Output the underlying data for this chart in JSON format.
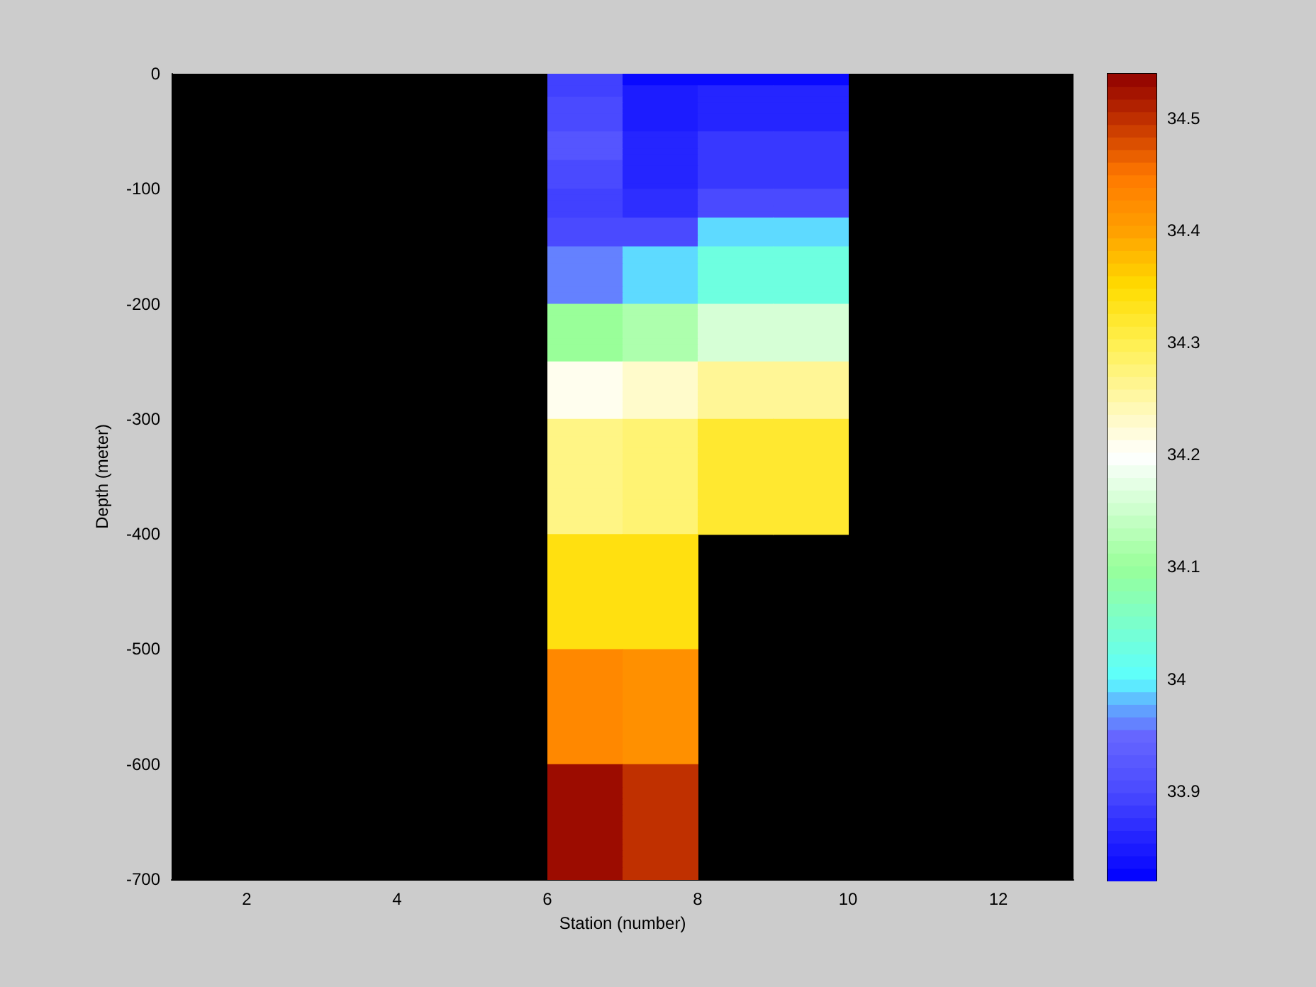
{
  "chart_data": {
    "type": "heatmap",
    "xlabel": "Station (number)",
    "ylabel": "Depth (meter)",
    "xlim": [
      1,
      13
    ],
    "xticks": [
      2,
      4,
      6,
      8,
      10,
      12
    ],
    "ylim": [
      -700,
      0
    ],
    "yticks": [
      0,
      -100,
      -200,
      -300,
      -400,
      -500,
      -600,
      -700
    ],
    "clim": [
      33.82,
      34.54
    ],
    "cticks": [
      33.9,
      34,
      34.1,
      34.2,
      34.3,
      34.4,
      34.5
    ],
    "cells": [
      [
        null,
        null,
        null,
        null,
        null,
        33.89,
        33.83,
        33.83,
        33.83,
        null,
        null,
        null
      ],
      [
        null,
        null,
        null,
        null,
        null,
        33.89,
        33.83,
        33.83,
        33.83,
        null,
        null,
        null
      ],
      [
        null,
        null,
        null,
        null,
        null,
        33.89,
        33.85,
        33.86,
        33.86,
        null,
        null,
        null
      ],
      [
        null,
        null,
        null,
        null,
        null,
        33.89,
        33.85,
        33.86,
        33.86,
        null,
        null,
        null
      ],
      [
        null,
        null,
        null,
        null,
        null,
        33.9,
        33.85,
        33.86,
        33.86,
        null,
        null,
        null
      ],
      [
        null,
        null,
        null,
        null,
        null,
        33.9,
        33.85,
        33.86,
        33.86,
        null,
        null,
        null
      ],
      [
        null,
        null,
        null,
        null,
        null,
        33.9,
        33.85,
        33.86,
        33.86,
        null,
        null,
        null
      ],
      [
        null,
        null,
        null,
        null,
        null,
        33.9,
        33.85,
        33.86,
        33.86,
        null,
        null,
        null
      ],
      [
        null,
        null,
        null,
        null,
        null,
        33.9,
        33.85,
        33.86,
        33.86,
        null,
        null,
        null
      ],
      [
        null,
        null,
        null,
        null,
        null,
        33.9,
        33.85,
        33.86,
        33.86,
        null,
        null,
        null
      ],
      [
        null,
        null,
        null,
        null,
        null,
        33.92,
        33.86,
        33.88,
        33.88,
        null,
        null,
        null
      ],
      [
        null,
        null,
        null,
        null,
        null,
        33.92,
        33.86,
        33.88,
        33.88,
        null,
        null,
        null
      ],
      [
        null,
        null,
        null,
        null,
        null,
        33.92,
        33.86,
        33.88,
        33.88,
        null,
        null,
        null
      ],
      [
        null,
        null,
        null,
        null,
        null,
        33.92,
        33.86,
        33.88,
        33.88,
        null,
        null,
        null
      ],
      [
        null,
        null,
        null,
        null,
        null,
        33.92,
        33.86,
        33.88,
        33.88,
        null,
        null,
        null
      ],
      [
        null,
        null,
        null,
        null,
        null,
        33.9,
        33.86,
        33.88,
        33.88,
        null,
        null,
        null
      ],
      [
        null,
        null,
        null,
        null,
        null,
        33.9,
        33.86,
        33.88,
        33.88,
        null,
        null,
        null
      ],
      [
        null,
        null,
        null,
        null,
        null,
        33.9,
        33.86,
        33.88,
        33.88,
        null,
        null,
        null
      ],
      [
        null,
        null,
        null,
        null,
        null,
        33.9,
        33.86,
        33.88,
        33.88,
        null,
        null,
        null
      ],
      [
        null,
        null,
        null,
        null,
        null,
        33.9,
        33.86,
        33.88,
        33.88,
        null,
        null,
        null
      ],
      [
        null,
        null,
        null,
        null,
        null,
        33.89,
        33.87,
        33.9,
        33.9,
        null,
        null,
        null
      ],
      [
        null,
        null,
        null,
        null,
        null,
        33.89,
        33.87,
        33.9,
        33.9,
        null,
        null,
        null
      ],
      [
        null,
        null,
        null,
        null,
        null,
        33.89,
        33.87,
        33.9,
        33.9,
        null,
        null,
        null
      ],
      [
        null,
        null,
        null,
        null,
        null,
        33.89,
        33.87,
        33.9,
        33.9,
        null,
        null,
        null
      ],
      [
        null,
        null,
        null,
        null,
        null,
        33.89,
        33.87,
        33.9,
        33.9,
        null,
        null,
        null
      ],
      [
        null,
        null,
        null,
        null,
        null,
        33.9,
        33.9,
        33.99,
        33.99,
        null,
        null,
        null
      ],
      [
        null,
        null,
        null,
        null,
        null,
        33.9,
        33.9,
        33.99,
        33.99,
        null,
        null,
        null
      ],
      [
        null,
        null,
        null,
        null,
        null,
        33.9,
        33.9,
        33.99,
        33.99,
        null,
        null,
        null
      ],
      [
        null,
        null,
        null,
        null,
        null,
        33.9,
        33.9,
        33.99,
        33.99,
        null,
        null,
        null
      ],
      [
        null,
        null,
        null,
        null,
        null,
        33.9,
        33.9,
        33.99,
        33.99,
        null,
        null,
        null
      ],
      [
        null,
        null,
        null,
        null,
        null,
        33.96,
        33.99,
        34.03,
        34.03,
        null,
        null,
        null
      ],
      [
        null,
        null,
        null,
        null,
        null,
        33.96,
        33.99,
        34.03,
        34.03,
        null,
        null,
        null
      ],
      [
        null,
        null,
        null,
        null,
        null,
        33.96,
        33.99,
        34.03,
        34.03,
        null,
        null,
        null
      ],
      [
        null,
        null,
        null,
        null,
        null,
        33.96,
        33.99,
        34.03,
        34.03,
        null,
        null,
        null
      ],
      [
        null,
        null,
        null,
        null,
        null,
        33.96,
        33.99,
        34.03,
        34.03,
        null,
        null,
        null
      ],
      [
        null,
        null,
        null,
        null,
        null,
        33.96,
        33.99,
        34.03,
        34.03,
        null,
        null,
        null
      ],
      [
        null,
        null,
        null,
        null,
        null,
        33.96,
        33.99,
        34.03,
        34.03,
        null,
        null,
        null
      ],
      [
        null,
        null,
        null,
        null,
        null,
        33.96,
        33.99,
        34.03,
        34.03,
        null,
        null,
        null
      ],
      [
        null,
        null,
        null,
        null,
        null,
        33.96,
        33.99,
        34.03,
        34.03,
        null,
        null,
        null
      ],
      [
        null,
        null,
        null,
        null,
        null,
        33.96,
        33.99,
        34.03,
        34.03,
        null,
        null,
        null
      ],
      [
        null,
        null,
        null,
        null,
        null,
        34.1,
        34.12,
        34.16,
        34.16,
        null,
        null,
        null
      ],
      [
        null,
        null,
        null,
        null,
        null,
        34.1,
        34.12,
        34.16,
        34.16,
        null,
        null,
        null
      ],
      [
        null,
        null,
        null,
        null,
        null,
        34.1,
        34.12,
        34.16,
        34.16,
        null,
        null,
        null
      ],
      [
        null,
        null,
        null,
        null,
        null,
        34.1,
        34.12,
        34.16,
        34.16,
        null,
        null,
        null
      ],
      [
        null,
        null,
        null,
        null,
        null,
        34.1,
        34.12,
        34.16,
        34.16,
        null,
        null,
        null
      ],
      [
        null,
        null,
        null,
        null,
        null,
        34.1,
        34.12,
        34.16,
        34.16,
        null,
        null,
        null
      ],
      [
        null,
        null,
        null,
        null,
        null,
        34.1,
        34.12,
        34.16,
        34.16,
        null,
        null,
        null
      ],
      [
        null,
        null,
        null,
        null,
        null,
        34.1,
        34.12,
        34.16,
        34.16,
        null,
        null,
        null
      ],
      [
        null,
        null,
        null,
        null,
        null,
        34.1,
        34.12,
        34.16,
        34.16,
        null,
        null,
        null
      ],
      [
        null,
        null,
        null,
        null,
        null,
        34.1,
        34.12,
        34.16,
        34.16,
        null,
        null,
        null
      ],
      [
        null,
        null,
        null,
        null,
        null,
        34.21,
        34.23,
        34.26,
        34.26,
        null,
        null,
        null
      ],
      [
        null,
        null,
        null,
        null,
        null,
        34.21,
        34.23,
        34.26,
        34.26,
        null,
        null,
        null
      ],
      [
        null,
        null,
        null,
        null,
        null,
        34.21,
        34.23,
        34.26,
        34.26,
        null,
        null,
        null
      ],
      [
        null,
        null,
        null,
        null,
        null,
        34.21,
        34.23,
        34.26,
        34.26,
        null,
        null,
        null
      ],
      [
        null,
        null,
        null,
        null,
        null,
        34.21,
        34.23,
        34.26,
        34.26,
        null,
        null,
        null
      ],
      [
        null,
        null,
        null,
        null,
        null,
        34.21,
        34.23,
        34.26,
        34.26,
        null,
        null,
        null
      ],
      [
        null,
        null,
        null,
        null,
        null,
        34.21,
        34.23,
        34.26,
        34.26,
        null,
        null,
        null
      ],
      [
        null,
        null,
        null,
        null,
        null,
        34.21,
        34.23,
        34.26,
        34.26,
        null,
        null,
        null
      ],
      [
        null,
        null,
        null,
        null,
        null,
        34.21,
        34.23,
        34.26,
        34.26,
        null,
        null,
        null
      ],
      [
        null,
        null,
        null,
        null,
        null,
        34.21,
        34.23,
        34.26,
        34.26,
        null,
        null,
        null
      ],
      [
        null,
        null,
        null,
        null,
        null,
        34.27,
        34.28,
        34.32,
        34.32,
        null,
        null,
        null
      ],
      [
        null,
        null,
        null,
        null,
        null,
        34.27,
        34.28,
        34.32,
        34.32,
        null,
        null,
        null
      ],
      [
        null,
        null,
        null,
        null,
        null,
        34.27,
        34.28,
        34.32,
        34.32,
        null,
        null,
        null
      ],
      [
        null,
        null,
        null,
        null,
        null,
        34.27,
        34.28,
        34.32,
        34.32,
        null,
        null,
        null
      ],
      [
        null,
        null,
        null,
        null,
        null,
        34.27,
        34.28,
        34.32,
        34.32,
        null,
        null,
        null
      ],
      [
        null,
        null,
        null,
        null,
        null,
        34.27,
        34.28,
        34.32,
        34.32,
        null,
        null,
        null
      ],
      [
        null,
        null,
        null,
        null,
        null,
        34.27,
        34.28,
        34.32,
        34.32,
        null,
        null,
        null
      ],
      [
        null,
        null,
        null,
        null,
        null,
        34.27,
        34.28,
        34.32,
        34.32,
        null,
        null,
        null
      ],
      [
        null,
        null,
        null,
        null,
        null,
        34.27,
        34.28,
        34.32,
        34.32,
        null,
        null,
        null
      ],
      [
        null,
        null,
        null,
        null,
        null,
        34.27,
        34.28,
        34.32,
        34.32,
        null,
        null,
        null
      ],
      [
        null,
        null,
        null,
        null,
        null,
        34.27,
        34.28,
        34.32,
        34.32,
        null,
        null,
        null
      ],
      [
        null,
        null,
        null,
        null,
        null,
        34.27,
        34.28,
        34.32,
        34.32,
        null,
        null,
        null
      ],
      [
        null,
        null,
        null,
        null,
        null,
        34.27,
        34.28,
        34.32,
        34.32,
        null,
        null,
        null
      ],
      [
        null,
        null,
        null,
        null,
        null,
        34.27,
        34.28,
        34.32,
        34.32,
        null,
        null,
        null
      ],
      [
        null,
        null,
        null,
        null,
        null,
        34.27,
        34.28,
        34.32,
        34.32,
        null,
        null,
        null
      ],
      [
        null,
        null,
        null,
        null,
        null,
        34.27,
        34.28,
        34.32,
        34.32,
        null,
        null,
        null
      ],
      [
        null,
        null,
        null,
        null,
        null,
        34.27,
        34.28,
        34.32,
        34.32,
        null,
        null,
        null
      ],
      [
        null,
        null,
        null,
        null,
        null,
        34.27,
        34.28,
        34.32,
        34.32,
        null,
        null,
        null
      ],
      [
        null,
        null,
        null,
        null,
        null,
        34.27,
        34.28,
        34.32,
        34.32,
        null,
        null,
        null
      ],
      [
        null,
        null,
        null,
        null,
        null,
        34.27,
        34.28,
        34.32,
        34.32,
        null,
        null,
        null
      ],
      [
        null,
        null,
        null,
        null,
        null,
        34.34,
        34.34,
        null,
        null,
        null,
        null,
        null
      ],
      [
        null,
        null,
        null,
        null,
        null,
        34.34,
        34.34,
        null,
        null,
        null,
        null,
        null
      ],
      [
        null,
        null,
        null,
        null,
        null,
        34.34,
        34.34,
        null,
        null,
        null,
        null,
        null
      ],
      [
        null,
        null,
        null,
        null,
        null,
        34.34,
        34.34,
        null,
        null,
        null,
        null,
        null
      ],
      [
        null,
        null,
        null,
        null,
        null,
        34.34,
        34.34,
        null,
        null,
        null,
        null,
        null
      ],
      [
        null,
        null,
        null,
        null,
        null,
        34.34,
        34.34,
        null,
        null,
        null,
        null,
        null
      ],
      [
        null,
        null,
        null,
        null,
        null,
        34.34,
        34.34,
        null,
        null,
        null,
        null,
        null
      ],
      [
        null,
        null,
        null,
        null,
        null,
        34.34,
        34.34,
        null,
        null,
        null,
        null,
        null
      ],
      [
        null,
        null,
        null,
        null,
        null,
        34.34,
        34.34,
        null,
        null,
        null,
        null,
        null
      ],
      [
        null,
        null,
        null,
        null,
        null,
        34.34,
        34.34,
        null,
        null,
        null,
        null,
        null
      ],
      [
        null,
        null,
        null,
        null,
        null,
        34.34,
        34.34,
        null,
        null,
        null,
        null,
        null
      ],
      [
        null,
        null,
        null,
        null,
        null,
        34.34,
        34.34,
        null,
        null,
        null,
        null,
        null
      ],
      [
        null,
        null,
        null,
        null,
        null,
        34.34,
        34.34,
        null,
        null,
        null,
        null,
        null
      ],
      [
        null,
        null,
        null,
        null,
        null,
        34.34,
        34.34,
        null,
        null,
        null,
        null,
        null
      ],
      [
        null,
        null,
        null,
        null,
        null,
        34.34,
        34.34,
        null,
        null,
        null,
        null,
        null
      ],
      [
        null,
        null,
        null,
        null,
        null,
        34.34,
        34.34,
        null,
        null,
        null,
        null,
        null
      ],
      [
        null,
        null,
        null,
        null,
        null,
        34.34,
        34.34,
        null,
        null,
        null,
        null,
        null
      ],
      [
        null,
        null,
        null,
        null,
        null,
        34.34,
        34.34,
        null,
        null,
        null,
        null,
        null
      ],
      [
        null,
        null,
        null,
        null,
        null,
        34.34,
        34.34,
        null,
        null,
        null,
        null,
        null
      ],
      [
        null,
        null,
        null,
        null,
        null,
        34.34,
        34.34,
        null,
        null,
        null,
        null,
        null
      ],
      [
        null,
        null,
        null,
        null,
        null,
        34.43,
        34.42,
        null,
        null,
        null,
        null,
        null
      ],
      [
        null,
        null,
        null,
        null,
        null,
        34.43,
        34.42,
        null,
        null,
        null,
        null,
        null
      ],
      [
        null,
        null,
        null,
        null,
        null,
        34.43,
        34.42,
        null,
        null,
        null,
        null,
        null
      ],
      [
        null,
        null,
        null,
        null,
        null,
        34.43,
        34.42,
        null,
        null,
        null,
        null,
        null
      ],
      [
        null,
        null,
        null,
        null,
        null,
        34.43,
        34.42,
        null,
        null,
        null,
        null,
        null
      ],
      [
        null,
        null,
        null,
        null,
        null,
        34.43,
        34.42,
        null,
        null,
        null,
        null,
        null
      ],
      [
        null,
        null,
        null,
        null,
        null,
        34.43,
        34.42,
        null,
        null,
        null,
        null,
        null
      ],
      [
        null,
        null,
        null,
        null,
        null,
        34.43,
        34.42,
        null,
        null,
        null,
        null,
        null
      ],
      [
        null,
        null,
        null,
        null,
        null,
        34.43,
        34.42,
        null,
        null,
        null,
        null,
        null
      ],
      [
        null,
        null,
        null,
        null,
        null,
        34.43,
        34.42,
        null,
        null,
        null,
        null,
        null
      ],
      [
        null,
        null,
        null,
        null,
        null,
        34.43,
        34.42,
        null,
        null,
        null,
        null,
        null
      ],
      [
        null,
        null,
        null,
        null,
        null,
        34.43,
        34.42,
        null,
        null,
        null,
        null,
        null
      ],
      [
        null,
        null,
        null,
        null,
        null,
        34.43,
        34.42,
        null,
        null,
        null,
        null,
        null
      ],
      [
        null,
        null,
        null,
        null,
        null,
        34.43,
        34.42,
        null,
        null,
        null,
        null,
        null
      ],
      [
        null,
        null,
        null,
        null,
        null,
        34.43,
        34.42,
        null,
        null,
        null,
        null,
        null
      ],
      [
        null,
        null,
        null,
        null,
        null,
        34.43,
        34.42,
        null,
        null,
        null,
        null,
        null
      ],
      [
        null,
        null,
        null,
        null,
        null,
        34.43,
        34.42,
        null,
        null,
        null,
        null,
        null
      ],
      [
        null,
        null,
        null,
        null,
        null,
        34.43,
        34.42,
        null,
        null,
        null,
        null,
        null
      ],
      [
        null,
        null,
        null,
        null,
        null,
        34.43,
        34.42,
        null,
        null,
        null,
        null,
        null
      ],
      [
        null,
        null,
        null,
        null,
        null,
        34.43,
        34.42,
        null,
        null,
        null,
        null,
        null
      ],
      [
        null,
        null,
        null,
        null,
        null,
        34.53,
        34.5,
        null,
        null,
        null,
        null,
        null
      ],
      [
        null,
        null,
        null,
        null,
        null,
        34.53,
        34.5,
        null,
        null,
        null,
        null,
        null
      ],
      [
        null,
        null,
        null,
        null,
        null,
        34.53,
        34.5,
        null,
        null,
        null,
        null,
        null
      ],
      [
        null,
        null,
        null,
        null,
        null,
        34.53,
        34.5,
        null,
        null,
        null,
        null,
        null
      ],
      [
        null,
        null,
        null,
        null,
        null,
        34.53,
        34.5,
        null,
        null,
        null,
        null,
        null
      ],
      [
        null,
        null,
        null,
        null,
        null,
        34.53,
        34.5,
        null,
        null,
        null,
        null,
        null
      ],
      [
        null,
        null,
        null,
        null,
        null,
        34.53,
        34.5,
        null,
        null,
        null,
        null,
        null
      ],
      [
        null,
        null,
        null,
        null,
        null,
        34.53,
        34.5,
        null,
        null,
        null,
        null,
        null
      ],
      [
        null,
        null,
        null,
        null,
        null,
        34.53,
        34.5,
        null,
        null,
        null,
        null,
        null
      ],
      [
        null,
        null,
        null,
        null,
        null,
        34.53,
        34.5,
        null,
        null,
        null,
        null,
        null
      ],
      [
        null,
        null,
        null,
        null,
        null,
        34.53,
        34.5,
        null,
        null,
        null,
        null,
        null
      ],
      [
        null,
        null,
        null,
        null,
        null,
        34.53,
        34.5,
        null,
        null,
        null,
        null,
        null
      ],
      [
        null,
        null,
        null,
        null,
        null,
        34.53,
        34.5,
        null,
        null,
        null,
        null,
        null
      ],
      [
        null,
        null,
        null,
        null,
        null,
        34.53,
        34.5,
        null,
        null,
        null,
        null,
        null
      ],
      [
        null,
        null,
        null,
        null,
        null,
        34.53,
        34.5,
        null,
        null,
        null,
        null,
        null
      ],
      [
        null,
        null,
        null,
        null,
        null,
        34.53,
        34.5,
        null,
        null,
        null,
        null,
        null
      ],
      [
        null,
        null,
        null,
        null,
        null,
        34.53,
        34.5,
        null,
        null,
        null,
        null,
        null
      ],
      [
        null,
        null,
        null,
        null,
        null,
        34.53,
        34.5,
        null,
        null,
        null,
        null,
        null
      ],
      [
        null,
        null,
        null,
        null,
        null,
        34.53,
        34.5,
        null,
        null,
        null,
        null,
        null
      ],
      [
        null,
        null,
        null,
        null,
        null,
        34.53,
        34.5,
        null,
        null,
        null,
        null,
        null
      ]
    ]
  }
}
